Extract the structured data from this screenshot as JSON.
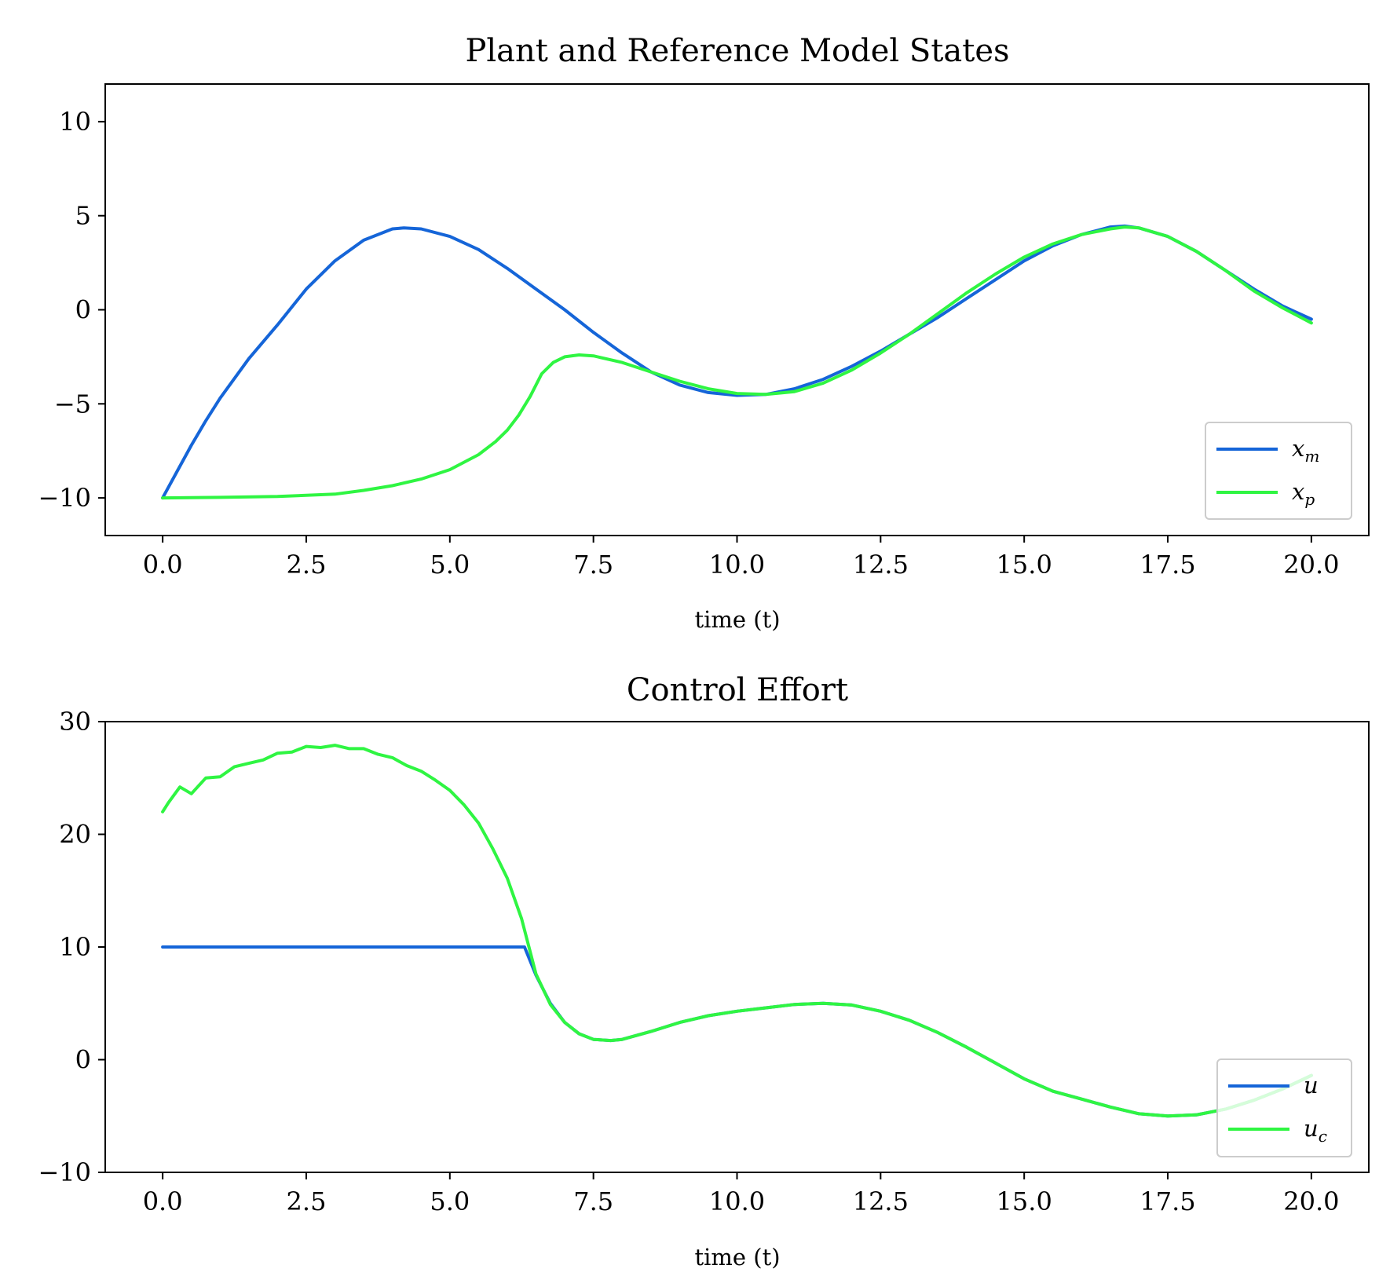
{
  "chart_data": [
    {
      "type": "line",
      "title": "Plant and Reference Model States",
      "xlabel": "time (t)",
      "ylabel": "",
      "xlim": [
        -1,
        21
      ],
      "ylim": [
        -12,
        12
      ],
      "xticks": [
        0,
        2.5,
        5,
        7.5,
        10,
        12.5,
        15,
        17.5,
        20
      ],
      "xtick_labels": [
        "0.0",
        "2.5",
        "5.0",
        "7.5",
        "10.0",
        "12.5",
        "15.0",
        "17.5",
        "20.0"
      ],
      "yticks": [
        -10,
        -5,
        0,
        5,
        10
      ],
      "ytick_labels": [
        "−10",
        "−5",
        "0",
        "5",
        "10"
      ],
      "legend": "lower-right",
      "series": [
        {
          "name": "x_m",
          "label_main": "x",
          "label_sub": "m",
          "color": "#1565d8",
          "x": [
            0,
            0.25,
            0.5,
            0.75,
            1,
            1.5,
            2,
            2.5,
            3,
            3.5,
            4,
            4.2,
            4.5,
            5,
            5.5,
            6,
            6.5,
            7,
            7.5,
            8,
            8.5,
            9,
            9.5,
            10,
            10.5,
            11,
            11.5,
            12,
            12.5,
            13,
            13.5,
            14,
            14.5,
            15,
            15.5,
            16,
            16.5,
            16.75,
            17,
            17.5,
            18,
            18.5,
            19,
            19.5,
            20
          ],
          "y": [
            -10,
            -8.6,
            -7.2,
            -5.9,
            -4.7,
            -2.6,
            -0.8,
            1.1,
            2.6,
            3.7,
            4.3,
            4.35,
            4.3,
            3.9,
            3.2,
            2.2,
            1.1,
            0,
            -1.2,
            -2.3,
            -3.3,
            -4,
            -4.4,
            -4.55,
            -4.5,
            -4.2,
            -3.7,
            -3,
            -2.2,
            -1.3,
            -0.4,
            0.6,
            1.6,
            2.6,
            3.4,
            4,
            4.4,
            4.45,
            4.35,
            3.9,
            3.1,
            2.1,
            1.1,
            0.2,
            -0.5
          ]
        },
        {
          "name": "x_p",
          "label_main": "x",
          "label_sub": "p",
          "color": "#2ff542",
          "x": [
            0,
            1,
            2,
            3,
            3.5,
            4,
            4.5,
            5,
            5.5,
            5.8,
            6,
            6.2,
            6.4,
            6.6,
            6.8,
            7,
            7.25,
            7.5,
            8,
            8.5,
            9,
            9.5,
            10,
            10.5,
            11,
            11.5,
            12,
            12.5,
            13,
            13.5,
            14,
            14.5,
            15,
            15.5,
            16,
            16.5,
            16.75,
            17,
            17.5,
            18,
            18.5,
            19,
            19.5,
            20
          ],
          "y": [
            -10,
            -9.97,
            -9.92,
            -9.8,
            -9.6,
            -9.35,
            -9,
            -8.5,
            -7.7,
            -7,
            -6.4,
            -5.6,
            -4.6,
            -3.4,
            -2.8,
            -2.5,
            -2.4,
            -2.45,
            -2.8,
            -3.3,
            -3.8,
            -4.2,
            -4.45,
            -4.5,
            -4.35,
            -3.9,
            -3.2,
            -2.3,
            -1.3,
            -0.2,
            0.9,
            1.9,
            2.8,
            3.5,
            4,
            4.3,
            4.4,
            4.35,
            3.9,
            3.1,
            2.1,
            1,
            0.1,
            -0.7
          ]
        }
      ]
    },
    {
      "type": "line",
      "title": "Control Effort",
      "xlabel": "time (t)",
      "ylabel": "",
      "xlim": [
        -1,
        21
      ],
      "ylim": [
        -10,
        30
      ],
      "xticks": [
        0,
        2.5,
        5,
        7.5,
        10,
        12.5,
        15,
        17.5,
        20
      ],
      "xtick_labels": [
        "0.0",
        "2.5",
        "5.0",
        "7.5",
        "10.0",
        "12.5",
        "15.0",
        "17.5",
        "20.0"
      ],
      "yticks": [
        -10,
        0,
        10,
        20,
        30
      ],
      "ytick_labels": [
        "−10",
        "0",
        "10",
        "20",
        "30"
      ],
      "legend": "lower-right",
      "series": [
        {
          "name": "u",
          "label_main": "u",
          "label_sub": "",
          "color": "#1565d8",
          "x": [
            0,
            0.5,
            1,
            2,
            3,
            4,
            5,
            6,
            6.3,
            6.5,
            6.75,
            7,
            7.25,
            7.5,
            7.8,
            8,
            8.5,
            9,
            9.5,
            10,
            10.5,
            11,
            11.5,
            12,
            12.5,
            13,
            13.5,
            14,
            14.5,
            15,
            15.5,
            16,
            16.5,
            17,
            17.5,
            18,
            18.5,
            19,
            19.5,
            20
          ],
          "y": [
            10,
            10,
            10,
            10,
            10,
            10,
            10,
            10,
            10,
            7.5,
            5,
            3.3,
            2.3,
            1.8,
            1.7,
            1.8,
            2.5,
            3.3,
            3.9,
            4.3,
            4.6,
            4.9,
            5,
            4.85,
            4.3,
            3.5,
            2.4,
            1.1,
            -0.3,
            -1.7,
            -2.8,
            -3.5,
            -4.2,
            -4.8,
            -5,
            -4.9,
            -4.4,
            -3.6,
            -2.6,
            -1.4
          ]
        },
        {
          "name": "u_c",
          "label_main": "u",
          "label_sub": "c",
          "color": "#2ff542",
          "x": [
            0,
            0.1,
            0.3,
            0.5,
            0.75,
            1,
            1.25,
            1.5,
            1.75,
            2,
            2.25,
            2.5,
            2.75,
            3,
            3.25,
            3.5,
            3.75,
            4,
            4.25,
            4.5,
            4.75,
            5,
            5.25,
            5.5,
            5.75,
            6,
            6.25,
            6.5,
            6.75,
            7,
            7.25,
            7.5,
            7.8,
            8,
            8.5,
            9,
            9.5,
            10,
            10.5,
            11,
            11.5,
            12,
            12.5,
            13,
            13.5,
            14,
            14.5,
            15,
            15.5,
            16,
            16.5,
            17,
            17.5,
            18,
            18.5,
            19,
            19.5,
            20
          ],
          "y": [
            22,
            22.8,
            24.2,
            23.6,
            25,
            25.1,
            26,
            26.3,
            26.6,
            27.2,
            27.3,
            27.8,
            27.7,
            27.9,
            27.6,
            27.6,
            27.1,
            26.8,
            26.1,
            25.6,
            24.8,
            23.9,
            22.6,
            21,
            18.7,
            16.1,
            12.5,
            7.6,
            4.9,
            3.3,
            2.3,
            1.8,
            1.7,
            1.8,
            2.5,
            3.3,
            3.9,
            4.3,
            4.6,
            4.9,
            5,
            4.85,
            4.3,
            3.5,
            2.4,
            1.1,
            -0.3,
            -1.7,
            -2.8,
            -3.5,
            -4.2,
            -4.8,
            -5,
            -4.9,
            -4.4,
            -3.6,
            -2.6,
            -1.4
          ]
        }
      ]
    }
  ]
}
